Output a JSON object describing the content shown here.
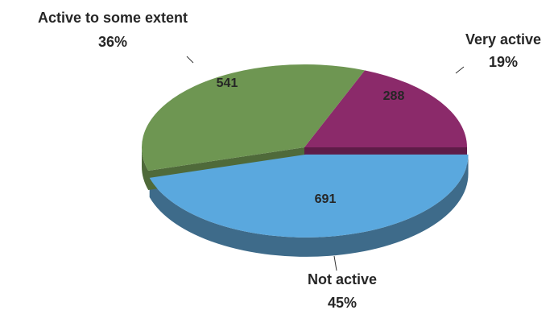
{
  "chart_data": {
    "type": "pie",
    "style": "3d-exploded",
    "categories": [
      "Very active",
      "Not active",
      "Active to some extent"
    ],
    "values": [
      288,
      691,
      541
    ],
    "percentages": [
      "19%",
      "45%",
      "36%"
    ],
    "colors": [
      "#8b2a6a",
      "#5aa8de",
      "#6e9652"
    ],
    "side_colors": [
      "#5e1c48",
      "#3e6b8a",
      "#4f6a3a"
    ],
    "title": "",
    "legend": "none"
  }
}
